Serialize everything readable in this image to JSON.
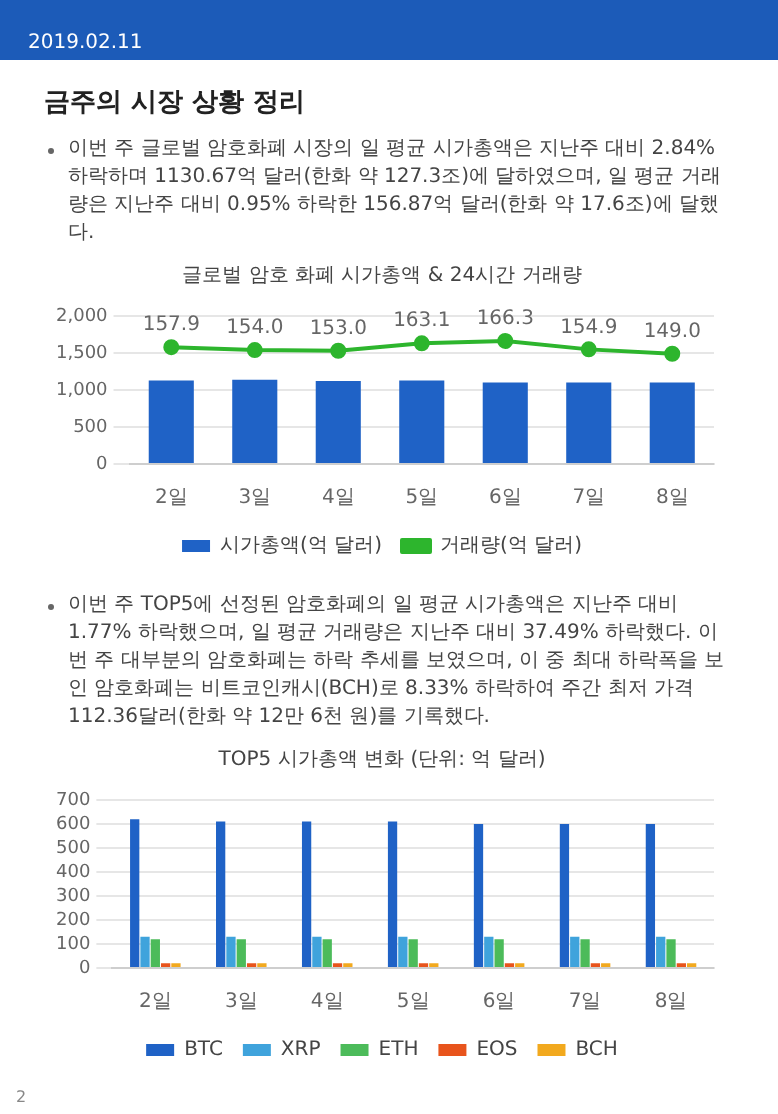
{
  "chart_data": [
    {
      "type": "bar",
      "title": "글로벌 암호 화폐 시가총액 & 24시간 거래량",
      "annotations": [
        "2019.02.11",
        "금주의 시장 상황 정리",
        "이번 주 글로벌 암호화폐 시장의 일 평균 시가총액은 지난주 대비 2.84% 하락하며 1130.67억 달러(한화 약 127.3조)에 달하였으며, 일 평균 거래량은 지난주 대비 0.95% 하락한 156.87억 달러(한화 약 17.6조)에 달했다."
      ],
      "categories": [
        "2일",
        "3일",
        "4일",
        "5일",
        "6일",
        "7일",
        "8일"
      ],
      "series": [
        {
          "name": "시가총액(억 달러)",
          "color": "#1f62c6",
          "values": [
            1130,
            1140,
            1120,
            1130,
            1100,
            1100,
            1100
          ]
        },
        {
          "name": "거래량(억 달러)",
          "type": "line",
          "axis": "y2",
          "color": "#2db52d",
          "values": [
            157.9,
            154.0,
            153.0,
            163.1,
            166.3,
            154.9,
            149.0
          ],
          "value_labels": [
            "157.9",
            "154.0",
            "153.0",
            "163.1",
            "166.3",
            "154.9",
            "149.0"
          ]
        }
      ],
      "ylim": [
        0,
        2000
      ],
      "yticks": [
        0,
        500,
        {
          "value": 1000,
          "label": "1,000"
        },
        {
          "value": 1500,
          "label": "1,500"
        },
        {
          "value": 2000,
          "label": "2,000"
        }
      ],
      "y2lim": [
        0,
        200
      ],
      "grid": "y",
      "legend": "bottom",
      "marker": "circle"
    },
    {
      "type": "bar",
      "title": "TOP5 시가총액 변화 (단위: 억 달러)",
      "annotations": [
        "이번 주 TOP5에 선정된 암호화폐의 일 평균 시가총액은 지난주 대비 1.77% 하락했으며, 일 평균 거래량은 지난주 대비 37.49% 하락했다. 이번 주 대부분의 암호화폐는 하락 추세를 보였으며, 이 중 최대 하락폭을 보인 암호화폐는 비트코인캐시(BCH)로 8.33% 하락하여 주간 최저 가격 112.36달러(한화 약 12만 6천 원)를 기록했다.",
        "2"
      ],
      "categories": [
        "2일",
        "3일",
        "4일",
        "5일",
        "6일",
        "7일",
        "8일"
      ],
      "series": [
        {
          "name": "BTC",
          "color": "#1f62c6",
          "values": [
            620,
            610,
            610,
            610,
            600,
            600,
            600
          ]
        },
        {
          "name": "XRP",
          "color": "#3fa3dc",
          "values": [
            130,
            130,
            130,
            130,
            130,
            130,
            130
          ]
        },
        {
          "name": "ETH",
          "color": "#4cbb5a",
          "values": [
            120,
            120,
            120,
            120,
            120,
            120,
            120
          ]
        },
        {
          "name": "EOS",
          "color": "#e8541c",
          "values": [
            20,
            20,
            20,
            20,
            20,
            20,
            20
          ]
        },
        {
          "name": "BCH",
          "color": "#f2a91e",
          "values": [
            20,
            20,
            20,
            20,
            20,
            20,
            20
          ]
        }
      ],
      "ylim": [
        0,
        700
      ],
      "yticks": [
        0,
        100,
        200,
        300,
        400,
        500,
        600,
        700
      ],
      "grid": "y",
      "legend": "bottom"
    }
  ]
}
